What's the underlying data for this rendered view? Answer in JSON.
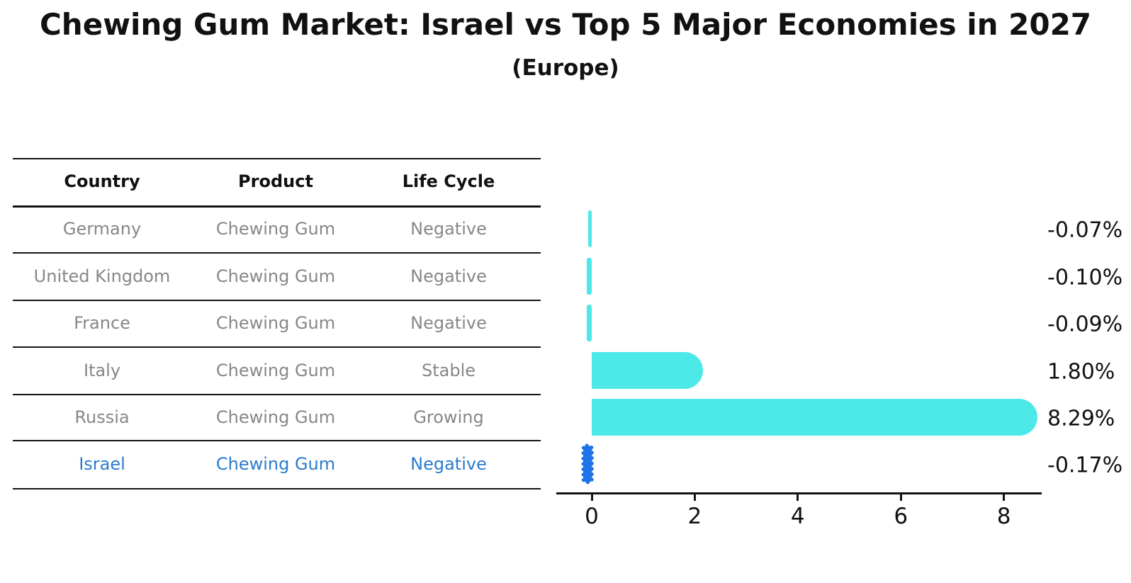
{
  "title": "Chewing Gum Market: Israel vs Top 5 Major Economies in 2027",
  "subtitle": "(Europe)",
  "table": {
    "headers": [
      "Country",
      "Product",
      "Life Cycle"
    ],
    "rows": [
      {
        "country": "Germany",
        "product": "Chewing Gum",
        "life_cycle": "Negative",
        "highlight": false
      },
      {
        "country": "United Kingdom",
        "product": "Chewing Gum",
        "life_cycle": "Negative",
        "highlight": false
      },
      {
        "country": "France",
        "product": "Chewing Gum",
        "life_cycle": "Negative",
        "highlight": false
      },
      {
        "country": "Italy",
        "product": "Chewing Gum",
        "life_cycle": "Stable",
        "highlight": false
      },
      {
        "country": "Russia",
        "product": "Chewing Gum",
        "life_cycle": "Growing",
        "highlight": false
      },
      {
        "country": "Israel",
        "product": "Chewing Gum",
        "life_cycle": "Negative",
        "highlight": true
      }
    ]
  },
  "chart_data": {
    "type": "bar",
    "orientation": "horizontal",
    "title": "Chewing Gum Market: Israel vs Top 5 Major Economies in 2027 (Europe)",
    "categories": [
      "Germany",
      "United Kingdom",
      "France",
      "Italy",
      "Russia",
      "Israel"
    ],
    "values": [
      -0.07,
      -0.1,
      -0.09,
      1.8,
      8.29,
      -0.17
    ],
    "value_labels": [
      "-0.07%",
      "-0.10%",
      "-0.09%",
      "1.80%",
      "8.29%",
      "-0.17%"
    ],
    "x_ticks": [
      "0",
      "2",
      "4",
      "6",
      "8"
    ],
    "x_tick_values": [
      0,
      2,
      4,
      6,
      8
    ],
    "xlim": [
      -0.7,
      8.75
    ],
    "grid": false,
    "legend": false,
    "highlight_index": 5,
    "colors": {
      "default_bar": "#4de9e9",
      "highlight_bar": "#1e74e8",
      "highlight_text": "#2b7bce",
      "row_text": "#878787",
      "header_text": "#111111",
      "axis": "#141414"
    }
  }
}
